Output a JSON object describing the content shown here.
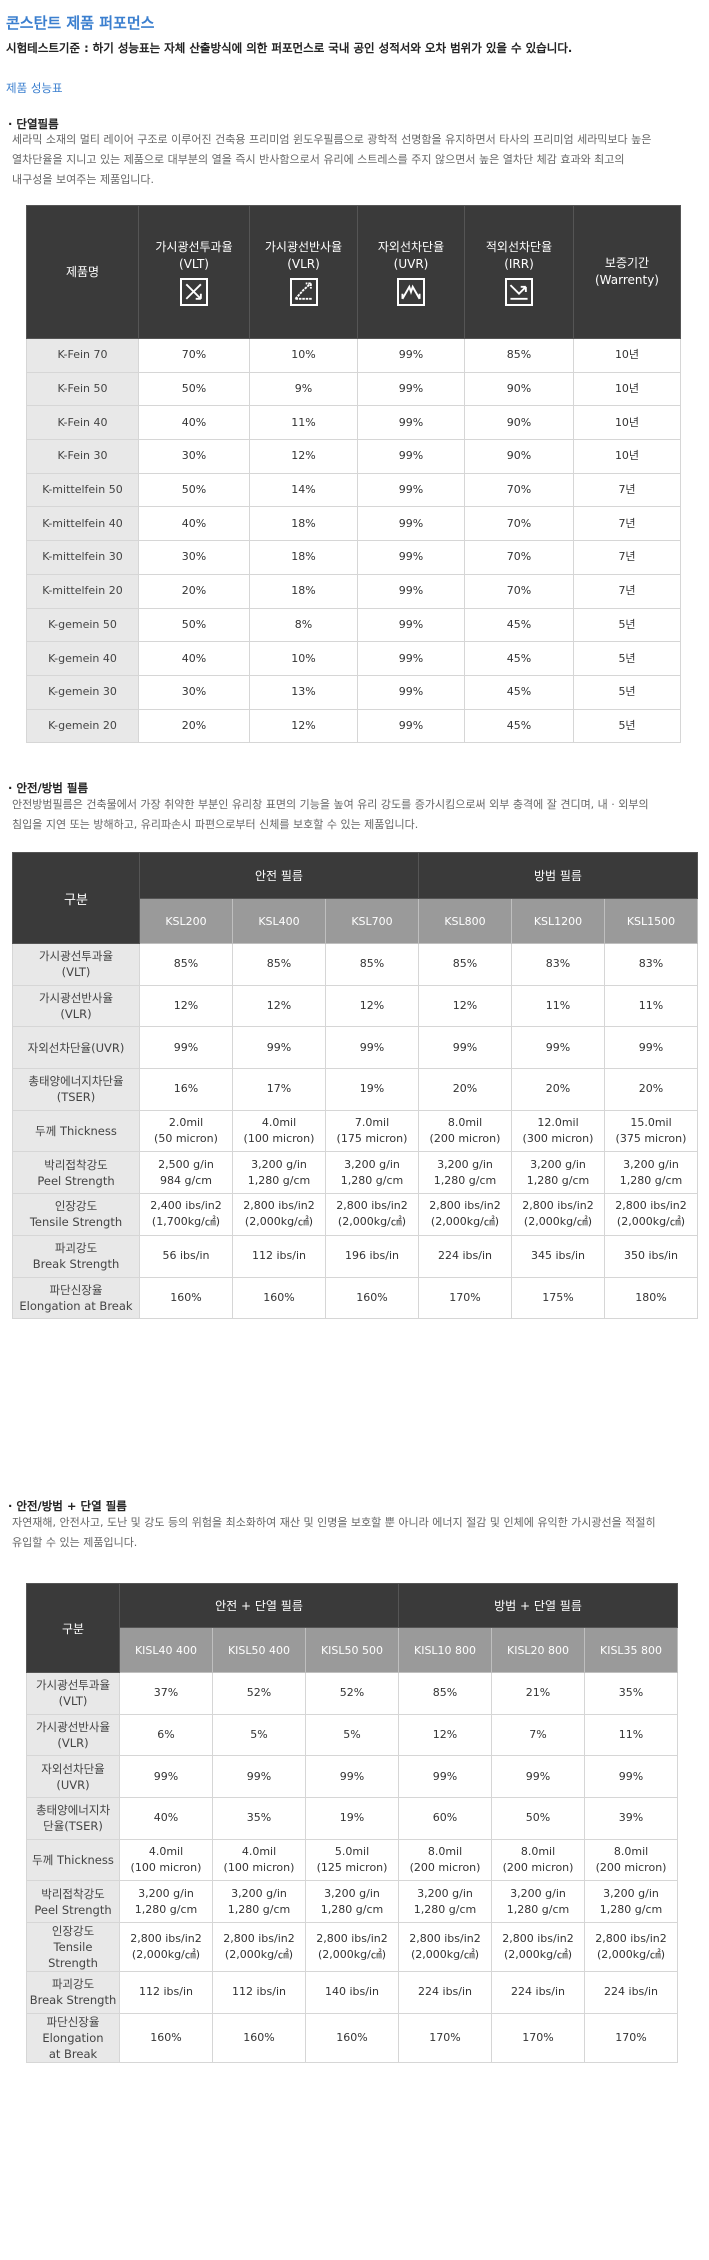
{
  "page": {
    "title": "콘스탄트 제품 퍼포먼스",
    "subtitle": "시험테스트기준 : 하기 성능표는 자체 산출방식에 의한 퍼포먼스로 국내 공인 성적서와 오차 범위가 있을 수 있습니다.",
    "link": "제품 성능표"
  },
  "section1": {
    "heading": "· 단열필름",
    "desc1": "세라믹 소재의 멀티 레이어 구조로 이루어진 건축용 프리미엄 윈도우필름으로 광학적 선명함을 유지하면서 타사의 프리미엄 세라믹보다 높은",
    "desc2": "열차단율을 지니고 있는 제품으로 대부분의 열을 즉시 반사함으로서 유리에 스트레스를 주지 않으면서 높은 열차단 체감 효과와 최고의",
    "desc3": "내구성을 보여주는 제품입니다.",
    "headers": [
      "제품명",
      "가시광선투과율",
      "(VLT)",
      "가시광선반사율",
      "(VLR)",
      "자외선차단율",
      "(UVR)",
      "적외선차단율",
      "(IRR)",
      "보증기간",
      "(Warrenty)"
    ],
    "icons": [
      "vlt-icon",
      "vlr-icon",
      "uvr-icon",
      "irr-icon"
    ],
    "rows": [
      [
        "K-Fein 70",
        "70%",
        "10%",
        "99%",
        "85%",
        "10년"
      ],
      [
        "K-Fein 50",
        "50%",
        "9%",
        "99%",
        "90%",
        "10년"
      ],
      [
        "K-Fein 40",
        "40%",
        "11%",
        "99%",
        "90%",
        "10년"
      ],
      [
        "K-Fein 30",
        "30%",
        "12%",
        "99%",
        "90%",
        "10년"
      ],
      [
        "K-mittelfein 50",
        "50%",
        "14%",
        "99%",
        "70%",
        "7년"
      ],
      [
        "K-mittelfein 40",
        "40%",
        "18%",
        "99%",
        "70%",
        "7년"
      ],
      [
        "K-mittelfein 30",
        "30%",
        "18%",
        "99%",
        "70%",
        "7년"
      ],
      [
        "K-mittelfein 20",
        "20%",
        "18%",
        "99%",
        "70%",
        "7년"
      ],
      [
        "K-gemein 50",
        "50%",
        "8%",
        "99%",
        "45%",
        "5년"
      ],
      [
        "K-gemein 40",
        "40%",
        "10%",
        "99%",
        "45%",
        "5년"
      ],
      [
        "K-gemein 30",
        "30%",
        "13%",
        "99%",
        "45%",
        "5년"
      ],
      [
        "K-gemein 20",
        "20%",
        "12%",
        "99%",
        "45%",
        "5년"
      ]
    ]
  },
  "section2": {
    "heading": "· 안전/방범 필름",
    "desc1": "안전방범필름은 건축물에서 가장 취약한 부분인 유리창 표면의 기능을 높여 유리 강도를 증가시킴으로써 외부 충격에 잘 견디며, 내 · 외부의",
    "desc2": "침입을 지연 또는 방해하고, 유리파손시 파편으로부터 신체를 보호할 수 있는 제품입니다.",
    "corner": "구분",
    "group1": "안전 필름",
    "group2": "방범 필름",
    "models": [
      "KSL200",
      "KSL400",
      "KSL700",
      "KSL800",
      "KSL1200",
      "KSL1500"
    ],
    "rows": [
      {
        "label": [
          "가시광선투과율",
          "(VLT)"
        ],
        "values": [
          [
            "85%"
          ],
          [
            "85%"
          ],
          [
            "85%"
          ],
          [
            "85%"
          ],
          [
            "83%"
          ],
          [
            "83%"
          ]
        ]
      },
      {
        "label": [
          "가시광선반사율",
          "(VLR)"
        ],
        "values": [
          [
            "12%"
          ],
          [
            "12%"
          ],
          [
            "12%"
          ],
          [
            "12%"
          ],
          [
            "11%"
          ],
          [
            "11%"
          ]
        ]
      },
      {
        "label": [
          "자외선차단율(UVR)"
        ],
        "values": [
          [
            "99%"
          ],
          [
            "99%"
          ],
          [
            "99%"
          ],
          [
            "99%"
          ],
          [
            "99%"
          ],
          [
            "99%"
          ]
        ]
      },
      {
        "label": [
          "총태양에너지차단율",
          "(TSER)"
        ],
        "values": [
          [
            "16%"
          ],
          [
            "17%"
          ],
          [
            "19%"
          ],
          [
            "20%"
          ],
          [
            "20%"
          ],
          [
            "20%"
          ]
        ]
      },
      {
        "label": [
          "두께 Thickness"
        ],
        "values": [
          [
            "2.0mil",
            "(50 micron)"
          ],
          [
            "4.0mil",
            "(100 micron)"
          ],
          [
            "7.0mil",
            "(175 micron)"
          ],
          [
            "8.0mil",
            "(200 micron)"
          ],
          [
            "12.0mil",
            "(300 micron)"
          ],
          [
            "15.0mil",
            "(375 micron)"
          ]
        ]
      },
      {
        "label": [
          "박리접착강도",
          "Peel Strength"
        ],
        "values": [
          [
            "2,500 g/in",
            "984 g/cm"
          ],
          [
            "3,200 g/in",
            "1,280 g/cm"
          ],
          [
            "3,200 g/in",
            "1,280 g/cm"
          ],
          [
            "3,200 g/in",
            "1,280 g/cm"
          ],
          [
            "3,200 g/in",
            "1,280 g/cm"
          ],
          [
            "3,200 g/in",
            "1,280 g/cm"
          ]
        ]
      },
      {
        "label": [
          "인장강도",
          "Tensile Strength"
        ],
        "values": [
          [
            "2,400 ibs/in2",
            "(1,700kg/㎠)"
          ],
          [
            "2,800 ibs/in2",
            "(2,000kg/㎠)"
          ],
          [
            "2,800 ibs/in2",
            "(2,000kg/㎠)"
          ],
          [
            "2,800 ibs/in2",
            "(2,000kg/㎠)"
          ],
          [
            "2,800 ibs/in2",
            "(2,000kg/㎠)"
          ],
          [
            "2,800 ibs/in2",
            "(2,000kg/㎠)"
          ]
        ]
      },
      {
        "label": [
          "파괴강도",
          "Break Strength"
        ],
        "values": [
          [
            "56 ibs/in"
          ],
          [
            "112 ibs/in"
          ],
          [
            "196 ibs/in"
          ],
          [
            "224 ibs/in"
          ],
          [
            "345 ibs/in"
          ],
          [
            "350 ibs/in"
          ]
        ]
      },
      {
        "label": [
          "파단신장율",
          "Elongation at Break"
        ],
        "values": [
          [
            "160%"
          ],
          [
            "160%"
          ],
          [
            "160%"
          ],
          [
            "170%"
          ],
          [
            "175%"
          ],
          [
            "180%"
          ]
        ]
      }
    ]
  },
  "section3": {
    "heading": "· 안전/방범 + 단열 필름",
    "desc1": "자연재해, 안전사고, 도난 및 강도 등의 위험을 최소화하여 재산 및 인명을 보호할 뿐 아니라 에너지 절감 및 인체에 유익한 가시광선을 적절히",
    "desc2": "유입할 수 있는 제품입니다.",
    "corner": "구분",
    "group1": "안전 + 단열 필름",
    "group2": "방범 + 단열 필름",
    "models": [
      "KISL40 400",
      "KISL50 400",
      "KISL50 500",
      "KISL10 800",
      "KISL20 800",
      "KISL35 800"
    ],
    "rows": [
      {
        "label": [
          "가시광선투과율",
          "(VLT)"
        ],
        "values": [
          [
            "37%"
          ],
          [
            "52%"
          ],
          [
            "52%"
          ],
          [
            "85%"
          ],
          [
            "21%"
          ],
          [
            "35%"
          ]
        ]
      },
      {
        "label": [
          "가시광선반사율",
          "(VLR)"
        ],
        "values": [
          [
            "6%"
          ],
          [
            "5%"
          ],
          [
            "5%"
          ],
          [
            "12%"
          ],
          [
            "7%"
          ],
          [
            "11%"
          ]
        ]
      },
      {
        "label": [
          "자외선차단율",
          "(UVR)"
        ],
        "values": [
          [
            "99%"
          ],
          [
            "99%"
          ],
          [
            "99%"
          ],
          [
            "99%"
          ],
          [
            "99%"
          ],
          [
            "99%"
          ]
        ]
      },
      {
        "label": [
          "총태양에너지차",
          "단율(TSER)"
        ],
        "values": [
          [
            "40%"
          ],
          [
            "35%"
          ],
          [
            "19%"
          ],
          [
            "60%"
          ],
          [
            "50%"
          ],
          [
            "39%"
          ]
        ]
      },
      {
        "label": [
          "두께 Thickness"
        ],
        "values": [
          [
            "4.0mil",
            "(100 micron)"
          ],
          [
            "4.0mil",
            "(100 micron)"
          ],
          [
            "5.0mil",
            "(125 micron)"
          ],
          [
            "8.0mil",
            "(200 micron)"
          ],
          [
            "8.0mil",
            "(200 micron)"
          ],
          [
            "8.0mil",
            "(200 micron)"
          ]
        ]
      },
      {
        "label": [
          "박리접착강도",
          "Peel Strength"
        ],
        "values": [
          [
            "3,200 g/in",
            "1,280 g/cm"
          ],
          [
            "3,200 g/in",
            "1,280 g/cm"
          ],
          [
            "3,200 g/in",
            "1,280 g/cm"
          ],
          [
            "3,200 g/in",
            "1,280 g/cm"
          ],
          [
            "3,200 g/in",
            "1,280 g/cm"
          ],
          [
            "3,200 g/in",
            "1,280 g/cm"
          ]
        ]
      },
      {
        "label": [
          "인장강도",
          "Tensile Strength"
        ],
        "values": [
          [
            "2,800 ibs/in2",
            "(2,000kg/㎠)"
          ],
          [
            "2,800 ibs/in2",
            "(2,000kg/㎠)"
          ],
          [
            "2,800 ibs/in2",
            "(2,000kg/㎠)"
          ],
          [
            "2,800 ibs/in2",
            "(2,000kg/㎠)"
          ],
          [
            "2,800 ibs/in2",
            "(2,000kg/㎠)"
          ],
          [
            "2,800 ibs/in2",
            "(2,000kg/㎠)"
          ]
        ]
      },
      {
        "label": [
          "파괴강도",
          "Break Strength"
        ],
        "values": [
          [
            "112 ibs/in"
          ],
          [
            "112 ibs/in"
          ],
          [
            "140 ibs/in"
          ],
          [
            "224 ibs/in"
          ],
          [
            "224 ibs/in"
          ],
          [
            "224 ibs/in"
          ]
        ]
      },
      {
        "label": [
          "파단신장율",
          "Elongation",
          "at Break"
        ],
        "values": [
          [
            "160%"
          ],
          [
            "160%"
          ],
          [
            "160%"
          ],
          [
            "170%"
          ],
          [
            "170%"
          ],
          [
            "170%"
          ]
        ]
      }
    ]
  },
  "colors": {
    "accent": "#3b7fcf",
    "header_dark": "#3a3a3a",
    "header_mid": "#9a9a9a",
    "row_label": "#e8e8e8"
  }
}
